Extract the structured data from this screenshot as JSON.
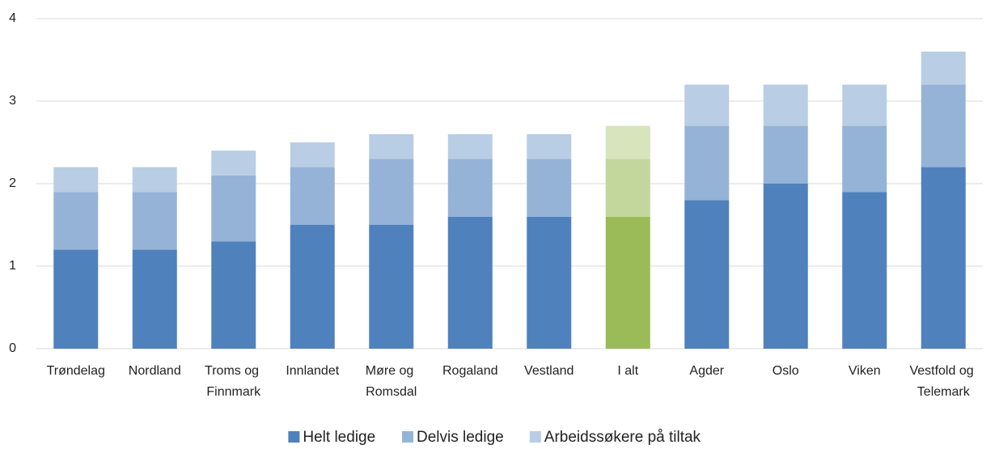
{
  "chart_data": {
    "type": "stacked_bar",
    "categories": [
      "Trøndelag",
      "Nordland",
      "Troms og Finnmark",
      "Innlandet",
      "Møre og Romsdal",
      "Rogaland",
      "Vestland",
      "I alt",
      "Agder",
      "Oslo",
      "Viken",
      "Vestfold og Telemark"
    ],
    "series": [
      {
        "name": "Helt ledige",
        "color": "#4f81bd",
        "values": [
          1.2,
          1.2,
          1.3,
          1.5,
          1.5,
          1.6,
          1.6,
          1.6,
          1.8,
          2.0,
          1.9,
          2.2
        ]
      },
      {
        "name": "Delvis ledige",
        "color": "#95b3d7",
        "values": [
          0.7,
          0.7,
          0.8,
          0.7,
          0.8,
          0.7,
          0.7,
          0.7,
          0.9,
          0.7,
          0.8,
          1.0
        ]
      },
      {
        "name": "Arbeidssøkere på tiltak",
        "color": "#b9cde5",
        "values": [
          0.3,
          0.3,
          0.3,
          0.3,
          0.3,
          0.3,
          0.3,
          0.4,
          0.5,
          0.5,
          0.5,
          0.4
        ]
      }
    ],
    "highlight_category": "I alt",
    "highlight_colors": [
      "#9bbb59",
      "#c3d69b",
      "#d7e4bc"
    ],
    "ylim": [
      0,
      4
    ],
    "yticks": [
      0,
      1,
      2,
      3,
      4
    ],
    "grid": true,
    "legend": "bottom"
  }
}
